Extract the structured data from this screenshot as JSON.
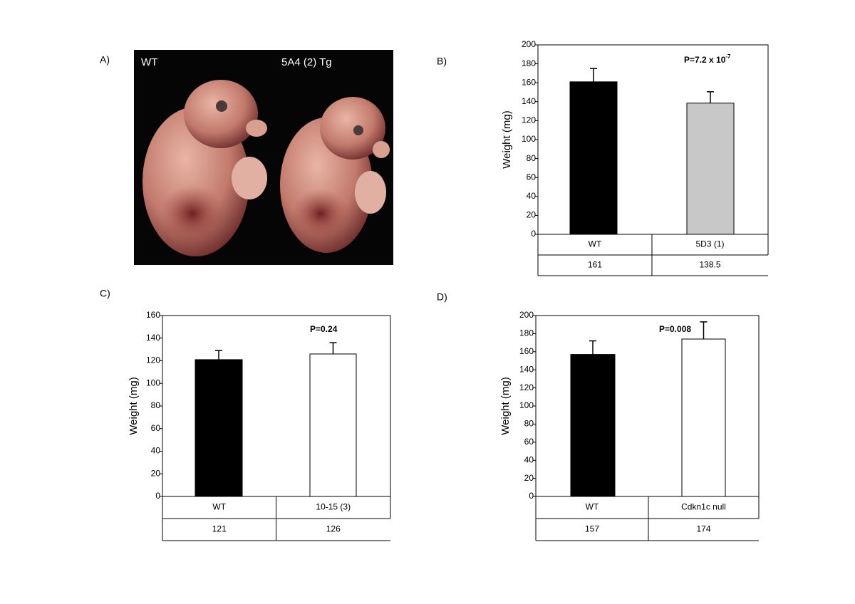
{
  "photo": {
    "label": "A)",
    "left_label": "WT",
    "right_label": "5A4 (2) Tg"
  },
  "chart_data": [
    {
      "type": "bar",
      "panel_label": "B)",
      "y_label": "Weight (mg)",
      "annotation": {
        "text": "P=7.2 x 10",
        "superscript": "-7"
      },
      "categories": [
        "WT",
        "5D3 (1)"
      ],
      "series": [
        {
          "values": [
            161,
            138.5
          ],
          "errors": [
            14,
            12
          ],
          "colors": [
            "#000000",
            "#c8c8c8"
          ]
        }
      ],
      "ylim": [
        0,
        200
      ],
      "yticks": [
        0,
        20,
        40,
        60,
        80,
        100,
        120,
        140,
        160,
        180,
        200
      ]
    },
    {
      "type": "bar",
      "panel_label": "C)",
      "y_label": "Weight (mg)",
      "annotation": {
        "text": "P=0.24"
      },
      "categories": [
        "WT",
        "10-15 (3)"
      ],
      "series": [
        {
          "values": [
            121,
            126
          ],
          "errors": [
            8,
            10
          ],
          "colors": [
            "#000000",
            "#ffffff"
          ]
        }
      ],
      "ylim": [
        0,
        160
      ],
      "yticks": [
        0,
        20,
        40,
        60,
        80,
        100,
        120,
        140,
        160
      ]
    },
    {
      "type": "bar",
      "panel_label": "D)",
      "y_label": "Weight (mg)",
      "annotation": {
        "text": "P=0.008"
      },
      "categories": [
        "WT",
        "Cdkn1c null"
      ],
      "series": [
        {
          "values": [
            157,
            174
          ],
          "errors": [
            15,
            19
          ],
          "colors": [
            "#000000",
            "#ffffff"
          ]
        }
      ],
      "ylim": [
        0,
        200
      ],
      "yticks": [
        0,
        20,
        40,
        60,
        80,
        100,
        120,
        140,
        160,
        180,
        200
      ]
    }
  ]
}
